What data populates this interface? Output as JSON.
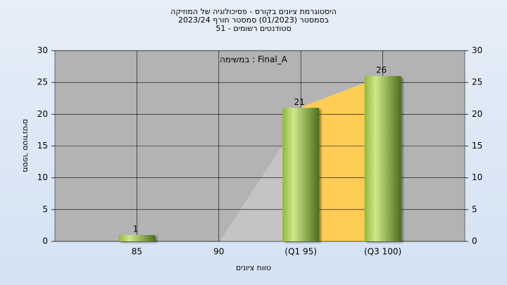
{
  "chart_data": {
    "type": "bar",
    "title": [
      "היסטוגרמת ציונים בקורס - פסיכולוגיה של המוזיקה",
      "בסמסטר (01/2023) סמסטר חורף 2023/24",
      "סטודנטים רשומים - 51"
    ],
    "annotation": "במשימה : Final_A",
    "x_label": "טווח ציונים",
    "y_label": "מספר סטודנטים",
    "categories": [
      "85",
      "90",
      "(Q1 95)",
      "(Q3 100)"
    ],
    "values": [
      1,
      0,
      21,
      26
    ],
    "value_labels": [
      "1",
      null,
      "21",
      "26"
    ],
    "color": "#9bc24a",
    "ylim": [
      0,
      30
    ],
    "yticks": [
      0,
      5,
      10,
      15,
      20,
      25,
      30
    ],
    "y2lim": [
      0,
      30
    ],
    "y2ticks": [
      0,
      5,
      10,
      15,
      20,
      25,
      30
    ],
    "grid": true
  }
}
